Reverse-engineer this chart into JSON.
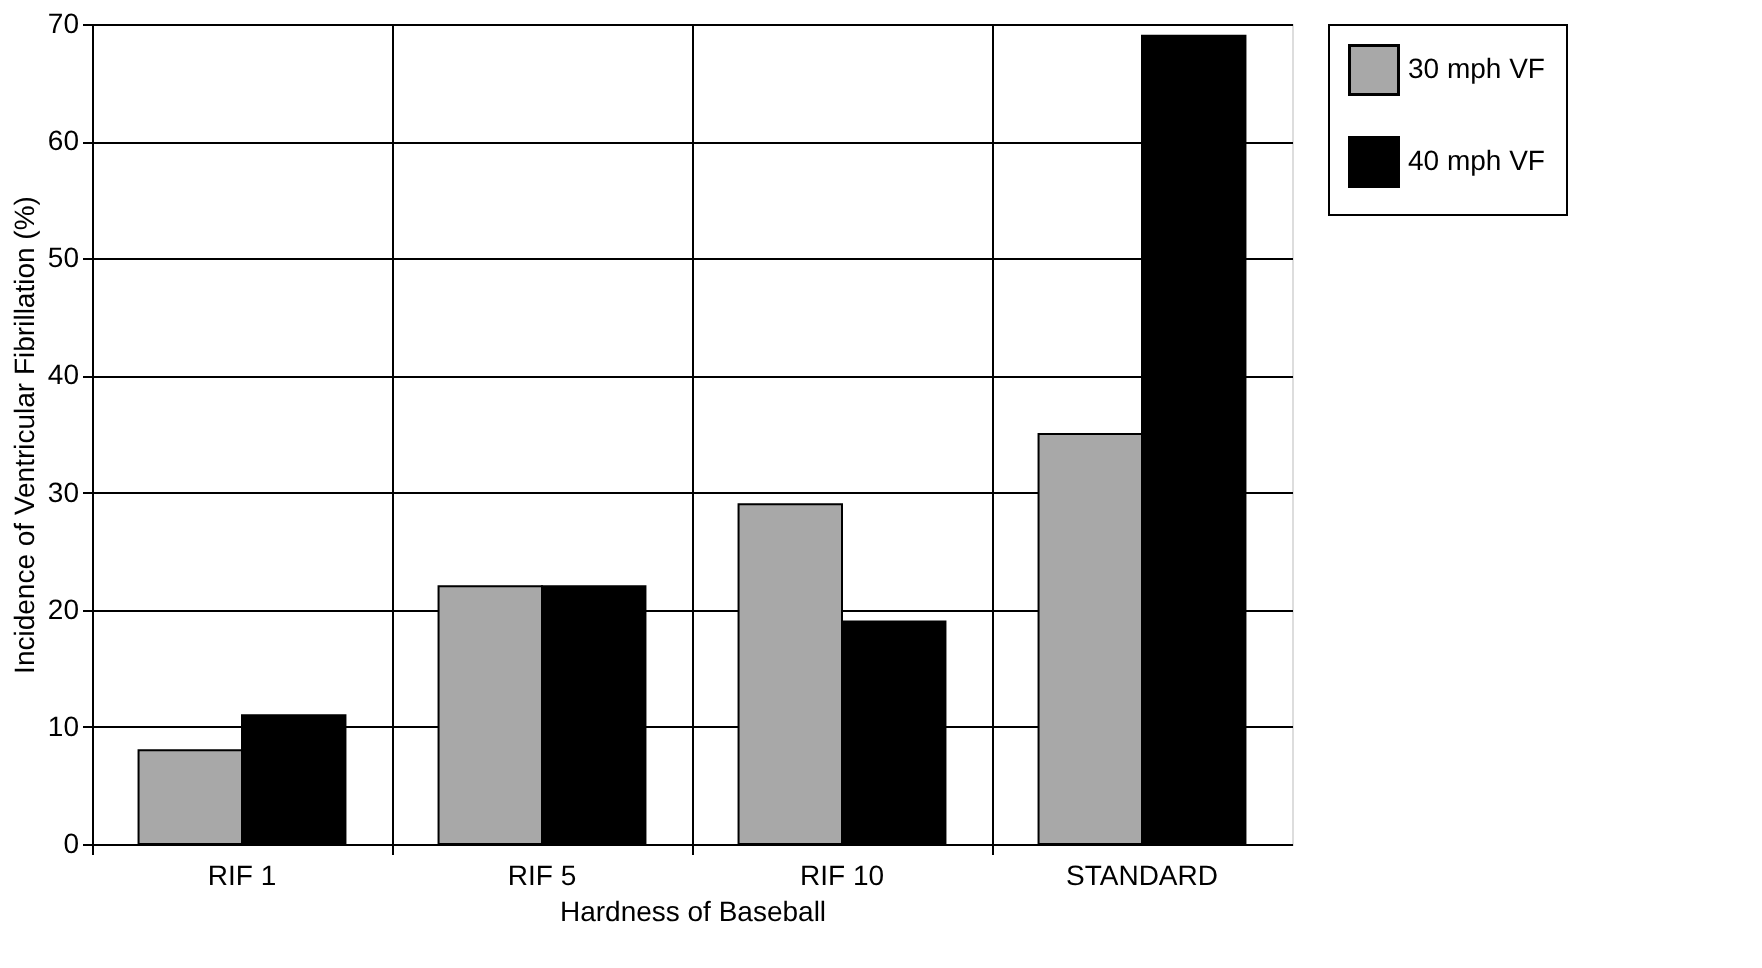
{
  "chart_data": {
    "type": "bar",
    "xlabel": "Hardness of Baseball",
    "ylabel": "Incidence of Ventricular Fibrillation (%)",
    "categories": [
      "RIF 1",
      "RIF 5",
      "RIF 10",
      "STANDARD"
    ],
    "series": [
      {
        "name": "30 mph VF",
        "color": "#a8a8a8",
        "values": [
          8,
          22,
          29,
          35
        ]
      },
      {
        "name": "40 mph VF",
        "color": "#000000",
        "values": [
          11,
          22,
          19,
          69
        ]
      }
    ],
    "ylim": [
      0,
      70
    ],
    "yticks": [
      0,
      10,
      20,
      30,
      40,
      50,
      60,
      70
    ],
    "grid": true,
    "legend": "top right"
  }
}
